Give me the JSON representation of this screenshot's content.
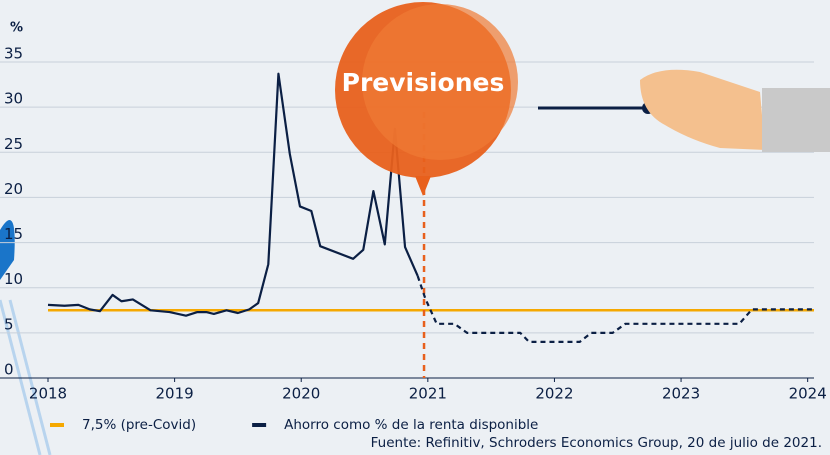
{
  "chart_data": {
    "type": "line",
    "y_label": "%",
    "xlim": [
      2018,
      2024.05
    ],
    "ylim": [
      0,
      35
    ],
    "xticks": [
      2018,
      2019,
      2020,
      2021,
      2022,
      2023,
      2024
    ],
    "yticks": [
      0,
      5,
      10,
      15,
      20,
      25,
      30,
      35
    ],
    "grid": true,
    "reference_lines": [
      {
        "name": "7,5% (pre-Covid)",
        "value": 7.5,
        "color": "#f5a800"
      }
    ],
    "series": [
      {
        "name": "Ahorro como % de la renta disponible",
        "color": "#0b1f44",
        "x": [
          2018.0,
          2018.13,
          2018.24,
          2018.33,
          2018.41,
          2018.51,
          2018.58,
          2018.67,
          2018.81,
          2018.96,
          2019.09,
          2019.18,
          2019.25,
          2019.31,
          2019.41,
          2019.5,
          2019.59,
          2019.66,
          2019.74,
          2019.82,
          2019.91,
          2019.99,
          2020.08,
          2020.15,
          2020.41,
          2020.49,
          2020.57,
          2020.66,
          2020.74,
          2020.82,
          2020.92,
          2020.98,
          2021.07,
          2021.21,
          2021.31,
          2021.57,
          2021.73,
          2021.8,
          2022.2,
          2022.29,
          2022.46,
          2022.56,
          2023.07,
          2023.46,
          2023.56,
          2024.05
        ],
        "values": [
          8.1,
          8.0,
          8.1,
          7.6,
          7.4,
          9.2,
          8.5,
          8.7,
          7.5,
          7.3,
          6.9,
          7.3,
          7.3,
          7.1,
          7.5,
          7.2,
          7.6,
          8.3,
          12.6,
          33.7,
          24.8,
          19.0,
          18.5,
          14.6,
          13.2,
          14.2,
          20.7,
          14.8,
          27.6,
          14.5,
          11.3,
          8.8,
          6.0,
          6.0,
          5.0,
          5.0,
          5.0,
          4.0,
          4.0,
          5.0,
          5.0,
          6.0,
          6.0,
          6.0,
          7.6,
          7.6
        ]
      }
    ],
    "annotation": {
      "text": "Previsiones",
      "x": 2020.97,
      "color": "#e8601c"
    },
    "source": "Fuente: Refinitiv, Schroders Economics Group, 20 de julio de 2021."
  }
}
